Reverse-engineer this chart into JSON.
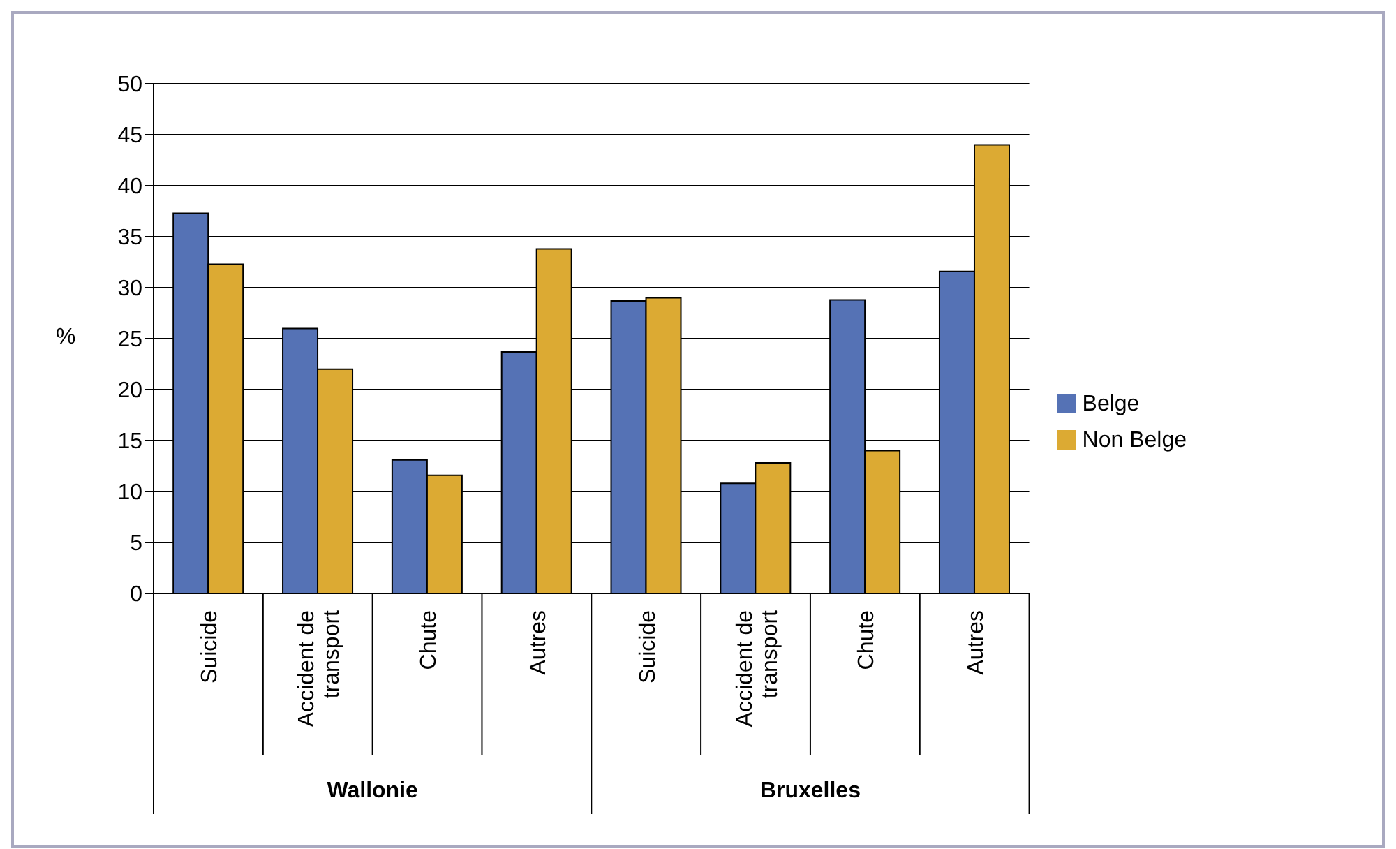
{
  "chart_data": {
    "type": "bar",
    "ylabel": "%",
    "categories": [
      "Suicide",
      "Accident de transport",
      "Chute",
      "Autres",
      "Suicide",
      "Accident de transport",
      "Chute",
      "Autres"
    ],
    "series": [
      {
        "name": "Belge",
        "color": "#5572b5",
        "values": [
          37.3,
          26,
          13.1,
          23.7,
          28.7,
          10.8,
          28.8,
          31.6
        ]
      },
      {
        "name": "Non Belge",
        "color": "#dcaa33",
        "values": [
          32.3,
          22,
          11.6,
          33.8,
          29,
          12.8,
          14,
          44
        ]
      }
    ],
    "annotations": [
      "Wallonie",
      "Bruxelles"
    ],
    "ylim": [
      0,
      50
    ],
    "yticks": [
      0,
      5,
      10,
      15,
      20,
      25,
      30,
      35,
      40,
      45,
      50
    ],
    "grid": "y",
    "legend": "right"
  }
}
